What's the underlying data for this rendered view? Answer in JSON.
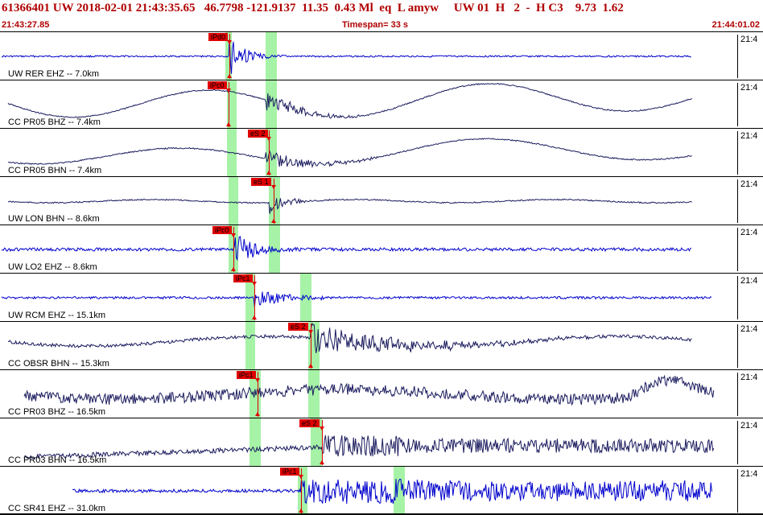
{
  "header": {
    "title": "61366401 UW 2018-02-01 21:43:35.65   46.7798 -121.9137  11.35  0.43 Ml  eq  L amyw     UW 01  H   2  -  H C3    9.73  1.62",
    "start_time": "21:43:27.85",
    "timespan": "Timespan=  33 s",
    "end_time": "21:44:01.02"
  },
  "colors": {
    "trace_blue": "#0000cc",
    "trace_navy": "#1a1a5e",
    "pick_red": "#e00000",
    "window_green": "#88ee88"
  },
  "panels": [
    {
      "label": "UW RER EHZ -- 7.0km",
      "time_label": "21:4",
      "color": "blue",
      "pick": "iPd0",
      "pick2": ""
    },
    {
      "label": "CC PR05 BHZ -- 7.4km",
      "time_label": "21:4",
      "color": "navy",
      "pick": "iPc0",
      "pick2": ""
    },
    {
      "label": "CC PR05 BHN -- 7.4km",
      "time_label": "21:4",
      "color": "navy",
      "pick": "eS 2",
      "pick2": ""
    },
    {
      "label": "UW LON BHN -- 8.6km",
      "time_label": "21:4",
      "color": "navy",
      "pick": "eS 1",
      "pick2": ""
    },
    {
      "label": "UW LO2 EHZ -- 8.6km",
      "time_label": "21:4",
      "color": "blue",
      "pick": "iPc0",
      "pick2": ""
    },
    {
      "label": "UW RCM EHZ -- 15.1km",
      "time_label": "21:4",
      "color": "blue",
      "pick": "iPc1",
      "pick2": ""
    },
    {
      "label": "CC OBSR BHN -- 15.3km",
      "time_label": "21:4",
      "color": "navy",
      "pick": "eS 2",
      "pick2": ""
    },
    {
      "label": "CC PR03 BHZ -- 16.5km",
      "time_label": "21:4",
      "color": "navy",
      "pick": "iPc1",
      "pick2": ""
    },
    {
      "label": "CC PR03 BHN -- 16.5km",
      "time_label": "21:4",
      "color": "navy",
      "pick": "eS 2",
      "pick2": ""
    },
    {
      "label": "CC SR41 EHZ -- 31.0km",
      "time_label": "21:4",
      "color": "blue",
      "pick": "iPc1",
      "pick2": ""
    }
  ]
}
